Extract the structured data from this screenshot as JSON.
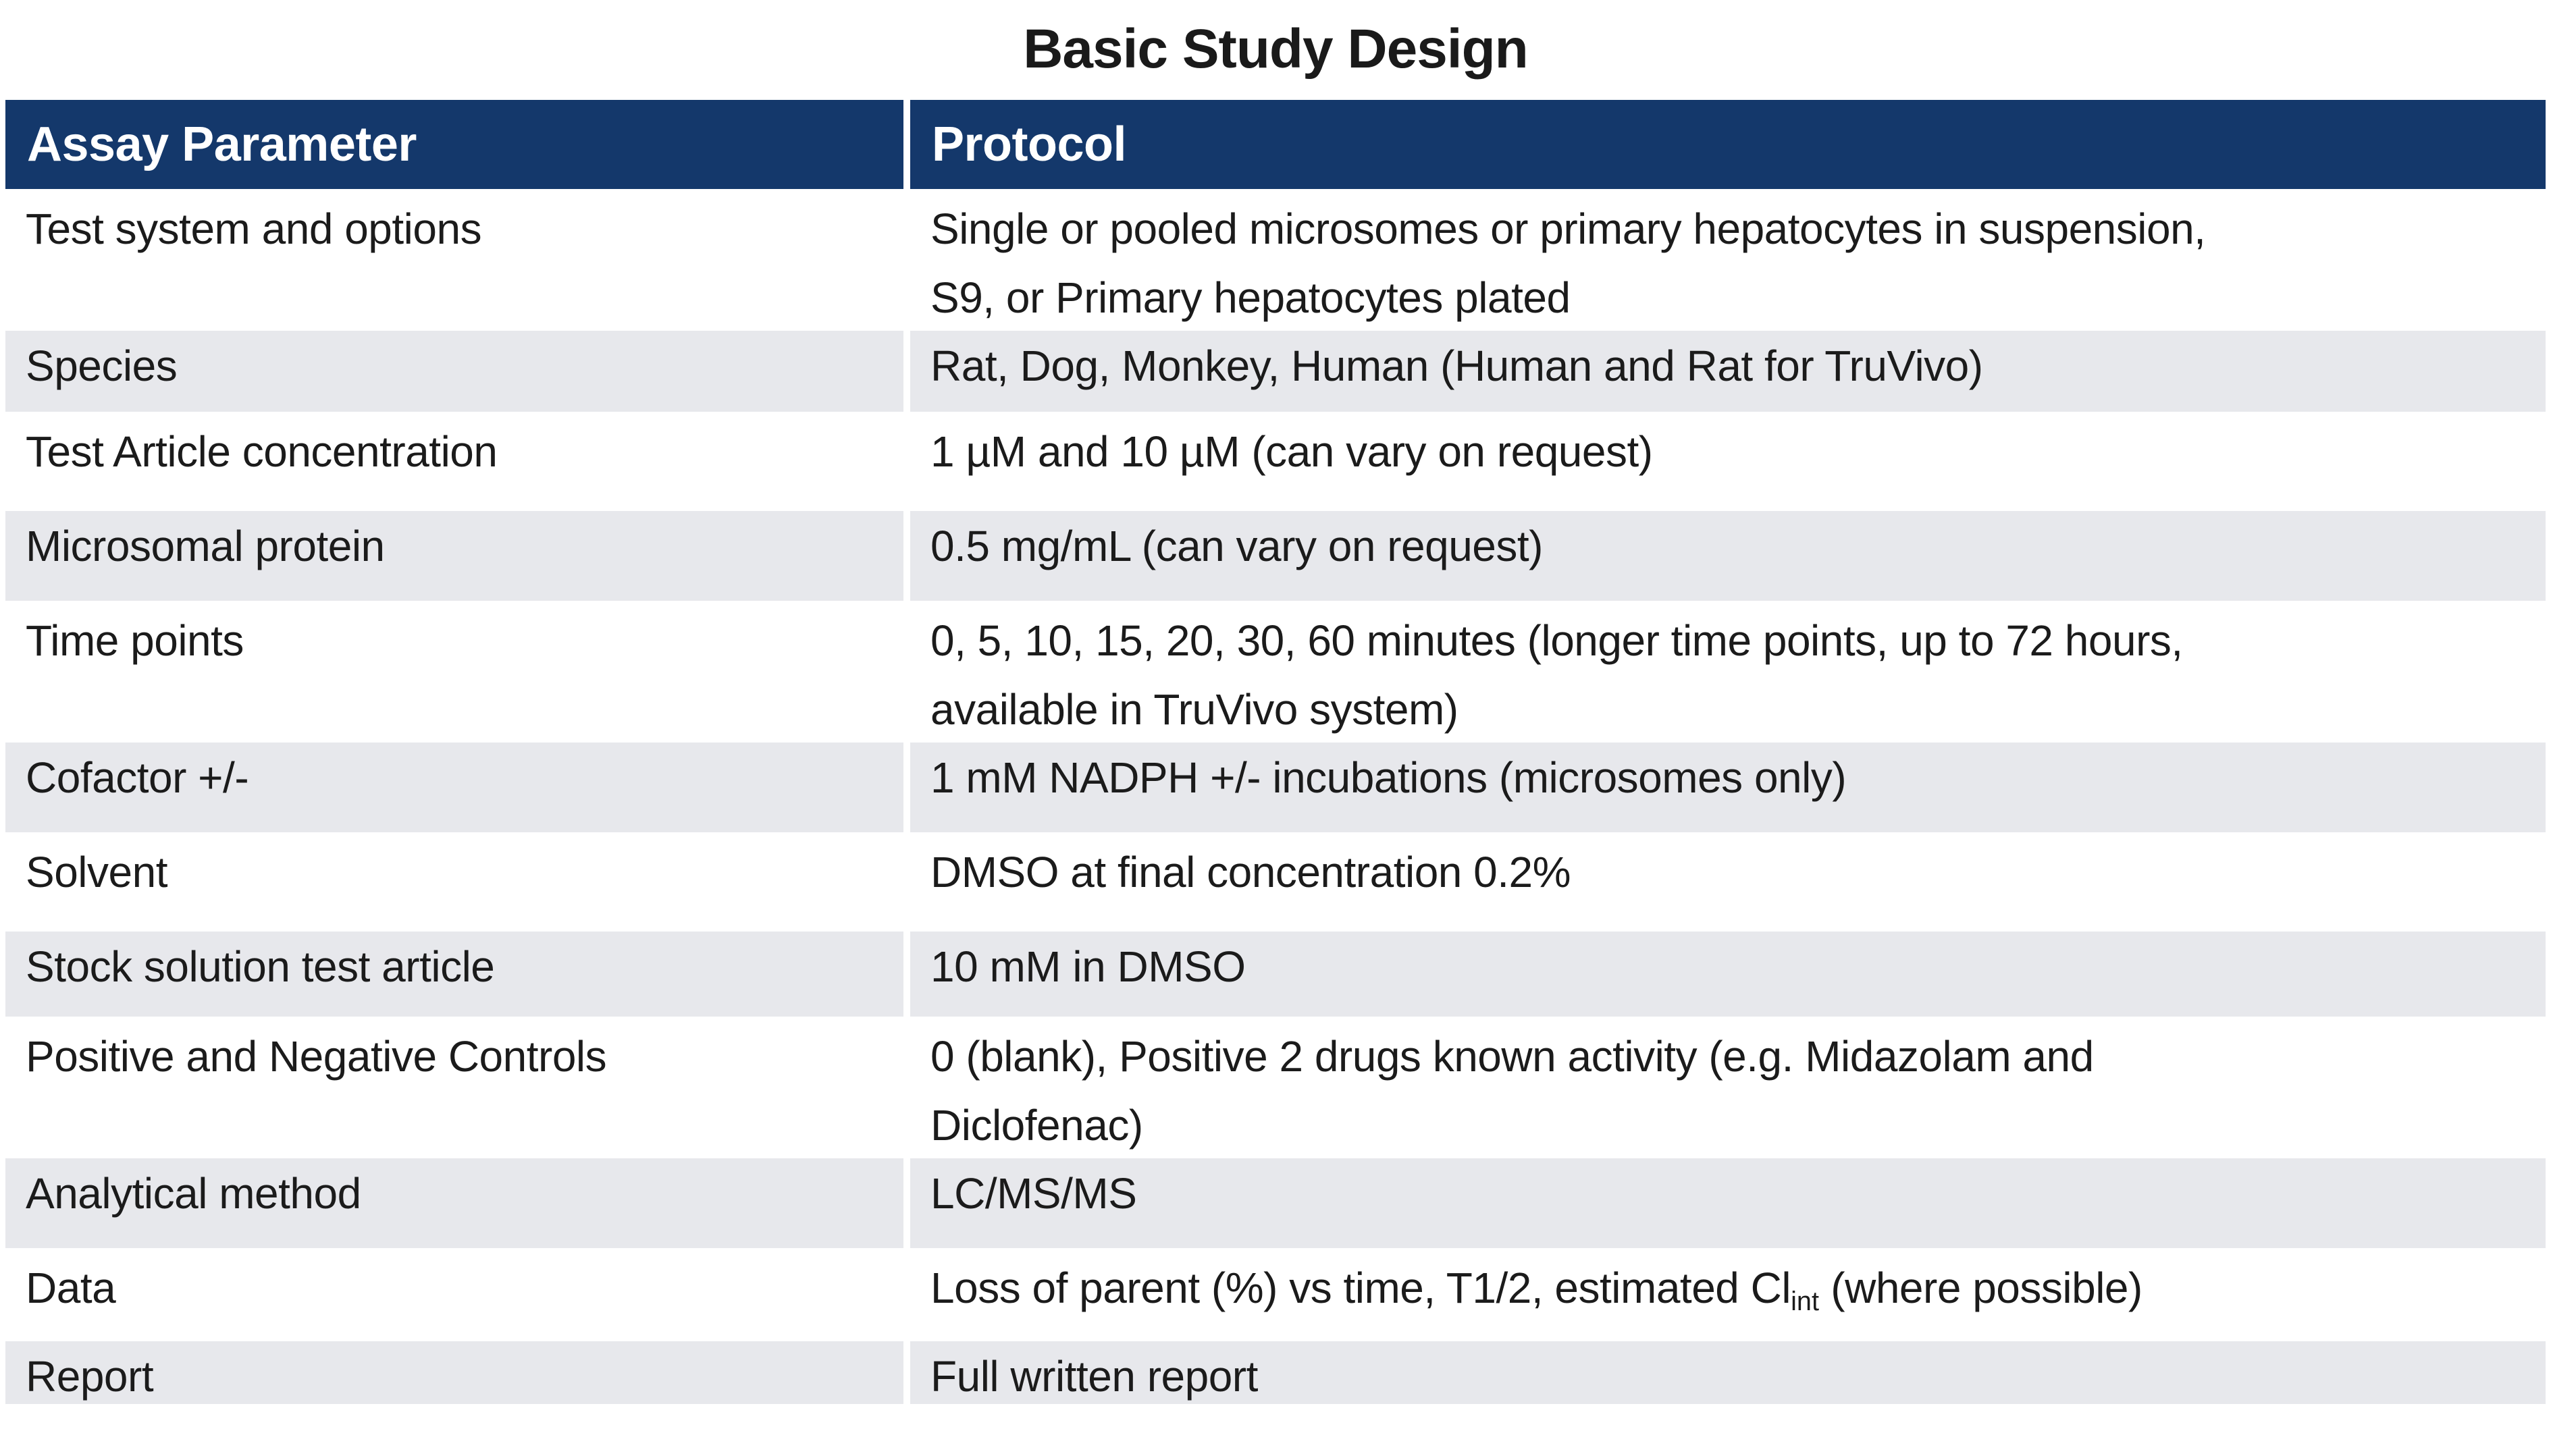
{
  "title": "Basic Study Design",
  "colors": {
    "header_bg": "#14386B",
    "header_text": "#FFFFFF",
    "band_bg": "#E7E8EC",
    "text": "#1B1B1B"
  },
  "table": {
    "headers": [
      "Assay Parameter",
      "Protocol"
    ],
    "rows": [
      {
        "param": "Test system and options",
        "lines": [
          "Single or pooled microsomes or primary hepatocytes in suspension,",
          "S9, or Primary hepatocytes plated"
        ]
      },
      {
        "param": "Species",
        "lines": [
          "Rat, Dog, Monkey, Human (Human and Rat for TruVivo)"
        ]
      },
      {
        "param": "Test Article concentration",
        "lines": [
          "1 µM and 10 µM (can vary on request)"
        ]
      },
      {
        "param": "Microsomal protein",
        "lines": [
          "0.5 mg/mL (can vary on request)"
        ]
      },
      {
        "param": "Time points",
        "lines": [
          "0, 5, 10, 15, 20, 30, 60 minutes (longer time points, up to 72 hours,",
          "available in TruVivo system)"
        ]
      },
      {
        "param": "Cofactor +/-",
        "lines": [
          "1 mM NADPH +/- incubations (microsomes only)"
        ]
      },
      {
        "param": "Solvent",
        "lines": [
          "DMSO at final concentration 0.2%"
        ]
      },
      {
        "param": "Stock solution test article",
        "lines": [
          "10 mM in DMSO"
        ]
      },
      {
        "param": "Positive and Negative Controls",
        "lines": [
          "0 (blank), Positive 2 drugs known activity (e.g. Midazolam and",
          "Diclofenac)"
        ]
      },
      {
        "param": "Analytical method",
        "lines": [
          "LC/MS/MS"
        ]
      },
      {
        "param": "Data",
        "protocol_pre": "Loss of parent (%) vs time, T1/2, estimated Cl",
        "protocol_sub": "int",
        "protocol_post": " (where possible)"
      },
      {
        "param": "Report",
        "lines": [
          "Full written report"
        ]
      }
    ]
  }
}
